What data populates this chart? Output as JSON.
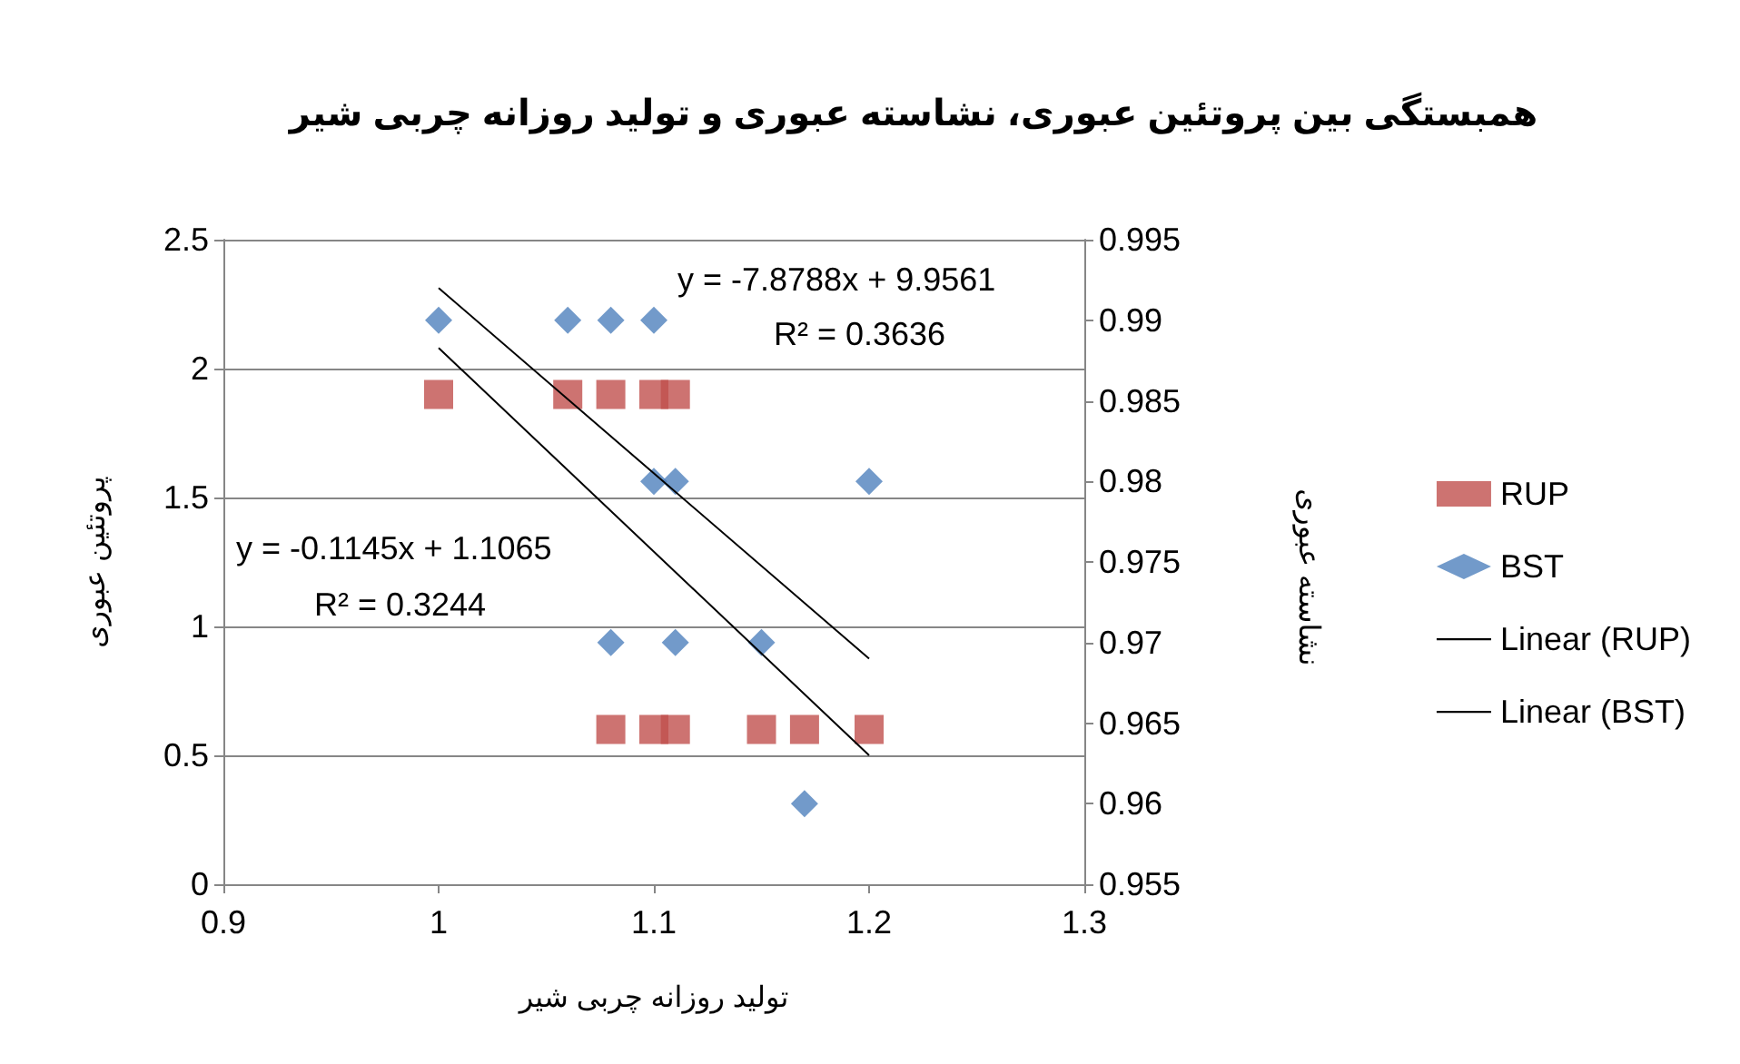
{
  "chart_data": {
    "type": "scatter",
    "title": "همبستگی بین پروتئین عبوری، نشاسته عبوری و تولید روزانه چربی شیر",
    "xlabel": "تولید روزانه چربی شیر",
    "ylabel": "پروتئین عبوری",
    "y2label": "نشاسته عبوری",
    "series": [
      {
        "name": "RUP",
        "marker": "square",
        "color": "#c0504d",
        "x": [
          1,
          1.06,
          1.08,
          1.1,
          1.11,
          1.08,
          1.1,
          1.11,
          1.15,
          1.17,
          1.2
        ],
        "values": [
          1.9,
          1.9,
          1.9,
          1.9,
          1.9,
          0.6,
          0.6,
          0.6,
          0.6,
          0.6,
          0.6
        ]
      },
      {
        "name": "BST",
        "marker": "diamond",
        "axis": "y2",
        "color": "#4f81bd",
        "x": [
          1,
          1.06,
          1.08,
          1.1,
          1.1,
          1.11,
          1.2,
          1.08,
          1.11,
          1.15,
          1.17
        ],
        "values": [
          0.99,
          0.99,
          0.99,
          0.99,
          0.98,
          0.98,
          0.98,
          0.97,
          0.97,
          0.97,
          0.96
        ]
      },
      {
        "name": "Linear (RUP)",
        "type": "line",
        "marker": "none",
        "color": "#000000",
        "x": [
          1,
          1.2
        ],
        "values": [
          2.08,
          0.5
        ]
      },
      {
        "name": "Linear (BST)",
        "type": "line",
        "marker": "none",
        "axis": "y2",
        "color": "#000000",
        "x": [
          1,
          1.2
        ],
        "values": [
          0.992,
          0.969
        ]
      }
    ],
    "annotations": [
      "y = -7.8788x + 9.9561",
      "R² = 0.3636",
      "y = -0.1145x + 1.1065",
      "R² = 0.3244"
    ],
    "xlim": [
      0.9,
      1.3
    ],
    "xticks": [
      0.9,
      1,
      1.1,
      1.2,
      1.3
    ],
    "ylim": [
      0,
      2.5
    ],
    "yticks": [
      0,
      0.5,
      1,
      1.5,
      2,
      2.5
    ],
    "y2lim": [
      0.955,
      0.995
    ],
    "y2ticks": [
      0.955,
      0.96,
      0.965,
      0.97,
      0.975,
      0.98,
      0.985,
      0.99,
      0.995
    ],
    "grid": "y",
    "legend": "right"
  }
}
